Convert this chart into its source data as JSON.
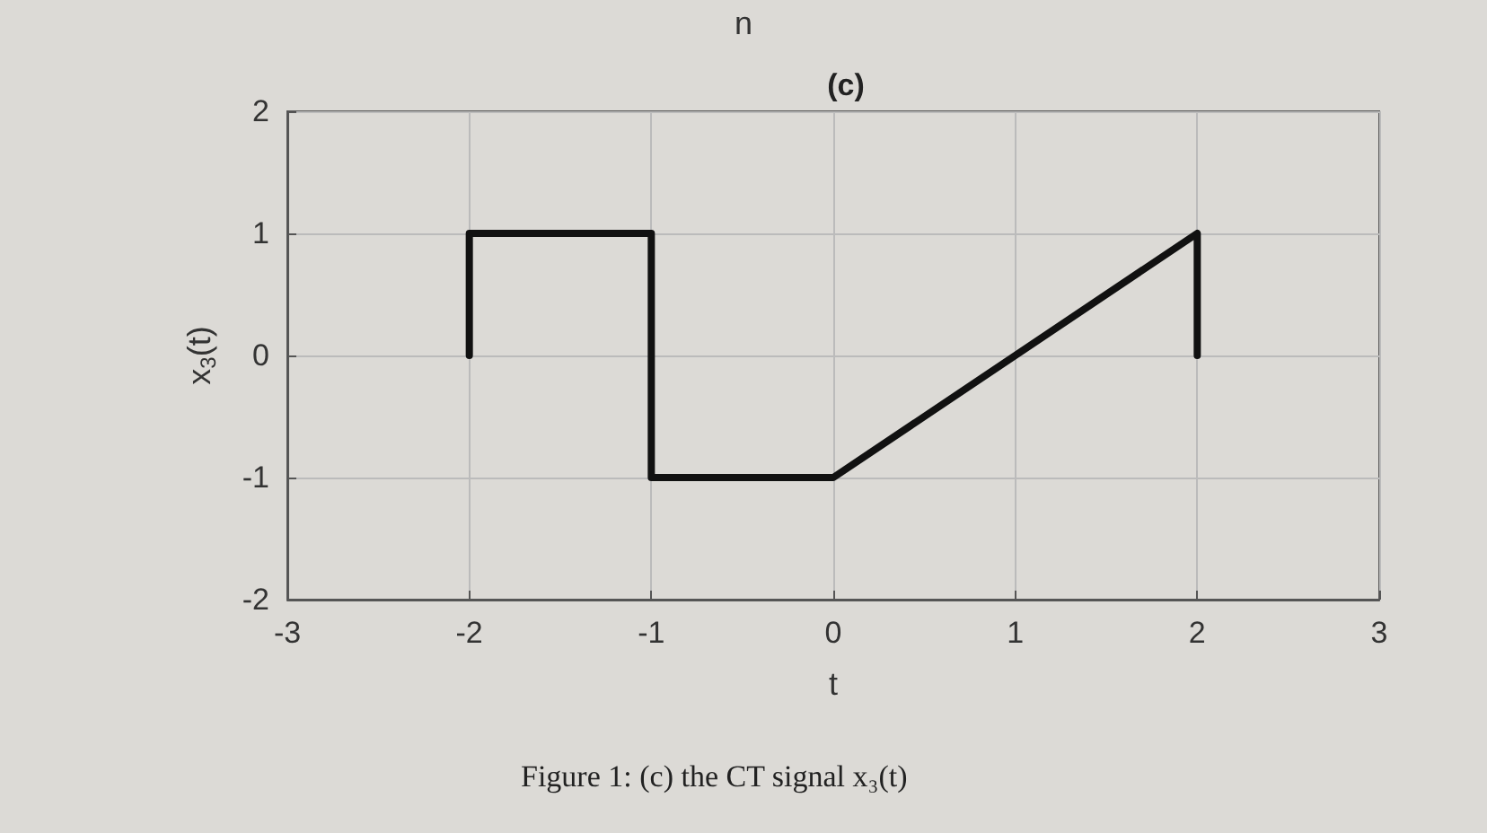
{
  "chart_data": {
    "type": "line",
    "title": "(c)",
    "xlabel": "t",
    "ylabel": "x$_{3}$(t)",
    "annotations": [
      "n",
      "Figure 1: (c) the CT signal x₃(t)"
    ],
    "x": [
      -2,
      -2,
      -1,
      -1,
      0,
      2,
      2
    ],
    "series": [
      {
        "color": "#111111",
        "values": [
          0,
          1,
          1,
          -1,
          -1,
          1,
          0
        ]
      }
    ],
    "xlim": [
      -3,
      3
    ],
    "xticks": [
      -3,
      -2,
      -1,
      0,
      1,
      2,
      3
    ],
    "ylim": [
      -2,
      2
    ],
    "yticks": [
      -2,
      -1,
      0,
      1,
      2
    ],
    "grid": true,
    "marker": "none",
    "line_style": "solid"
  }
}
